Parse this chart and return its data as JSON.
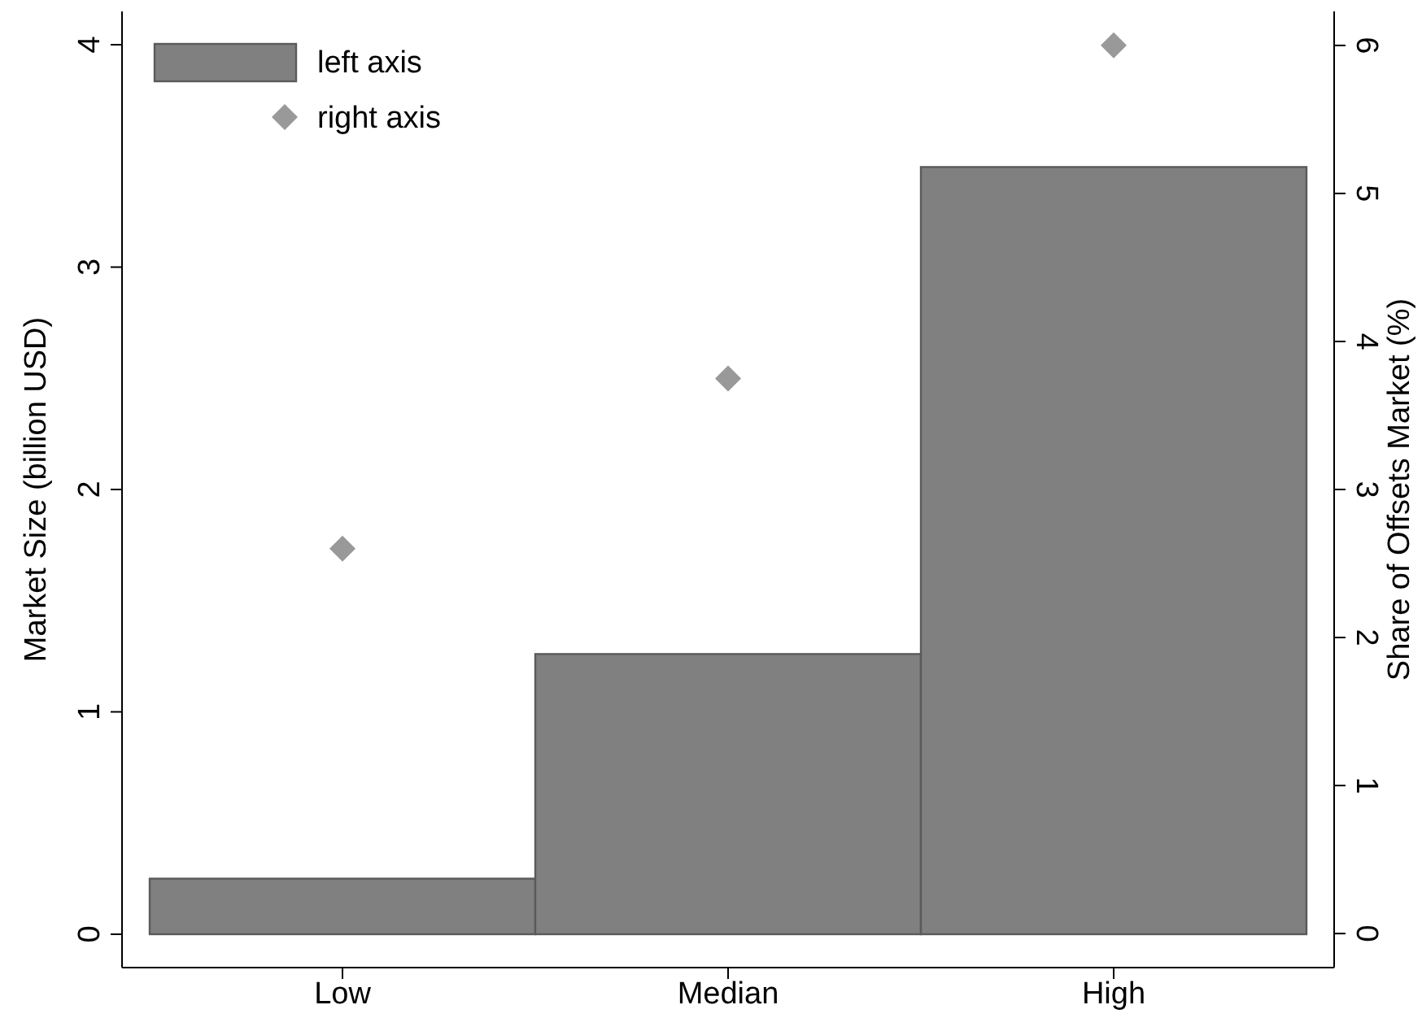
{
  "chart_data": {
    "type": "bar",
    "categories": [
      "Low",
      "Median",
      "High"
    ],
    "ylabel": "Market Size (billion USD)",
    "y2label": "Share of Offsets Market (%)",
    "series": [
      {
        "name": "left axis",
        "color": "#808080",
        "values": [
          0.25,
          1.26,
          3.45
        ]
      },
      {
        "name": "right axis",
        "type": "scatter",
        "axis": "y2",
        "color": "#999999",
        "marker": "diamond",
        "values": [
          2.6,
          3.75,
          6.0
        ]
      }
    ],
    "ylim": [
      -0.15,
      4.15
    ],
    "yticks": [
      0,
      1,
      2,
      3,
      4
    ],
    "y2lim": [
      -0.23,
      6.23
    ],
    "y2ticks": [
      0,
      1,
      2,
      3,
      4,
      5,
      6
    ],
    "legend": "top left",
    "grid": false
  }
}
